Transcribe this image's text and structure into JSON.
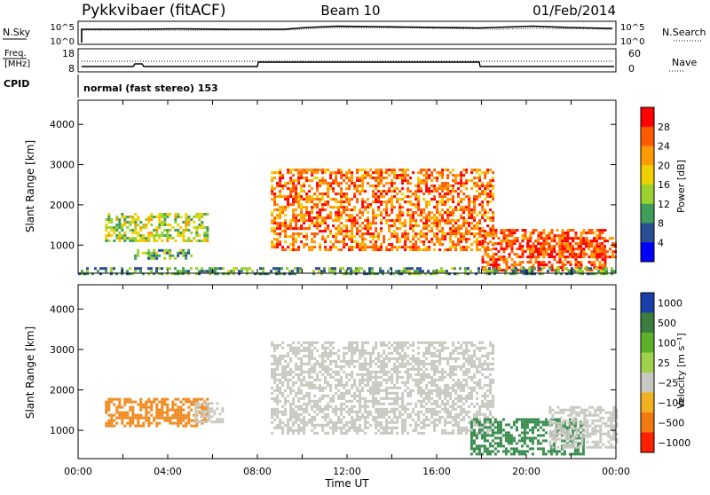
{
  "header": {
    "station": "Pykkvibaer (fitACF)",
    "beam": "Beam 10",
    "date": "01/Feb/2014"
  },
  "aux_panels": {
    "nsky_label": "N.Sky",
    "nsearch_label": "N.Search",
    "nsky_ticks": [
      "10^5",
      "10^0"
    ],
    "nsearch_ticks": [
      "10^5",
      "10^0"
    ],
    "freq_label_line1": "Freq.",
    "freq_label_line2": "[MHz]",
    "freq_ticks": [
      "18",
      "8"
    ],
    "nave_label": "Nave",
    "nave_ticks": [
      "60",
      "0"
    ],
    "cpid_label": "CPID",
    "cpid_text": "normal (fast stereo) 153"
  },
  "colors": {
    "frame": "#000000",
    "grid_bg": "#ffffff"
  },
  "chart_data": [
    {
      "type": "heatmap",
      "name": "power",
      "ylabel": "Slant Range [km]",
      "yticks": [
        1000,
        2000,
        3000,
        4000
      ],
      "ylim": [
        300,
        4600
      ],
      "xlim": [
        0,
        24
      ],
      "colorbar_label": "Power [dB]",
      "colorbar_ticks": [
        "28",
        "24",
        "20",
        "16",
        "12",
        "8",
        "4"
      ],
      "colorbar_colors": [
        "#ff0000",
        "#ff5a00",
        "#ff9a00",
        "#f0d000",
        "#9ad12c",
        "#3f9e5a",
        "#2a4e96",
        "#0000ff"
      ],
      "regions": [
        {
          "t0": 1.2,
          "t1": 5.8,
          "r0": 1100,
          "r1": 1800,
          "level": 0.45
        },
        {
          "t0": 2.5,
          "t1": 5.0,
          "r0": 700,
          "r1": 900,
          "level": 0.35
        },
        {
          "t0": 8.6,
          "t1": 18.5,
          "r0": 900,
          "r1": 2900,
          "level": 0.8
        },
        {
          "t0": 18.0,
          "t1": 23.5,
          "r0": 400,
          "r1": 1400,
          "level": 0.85
        },
        {
          "t0": 20.0,
          "t1": 24.0,
          "r0": 700,
          "r1": 1200,
          "level": 0.9
        },
        {
          "t0": 0.0,
          "t1": 24.0,
          "r0": 300,
          "r1": 450,
          "level": 0.3
        }
      ]
    },
    {
      "type": "heatmap",
      "name": "velocity",
      "ylabel": "Slant Range [km]",
      "xlabel": "Time UT",
      "yticks": [
        1000,
        2000,
        3000,
        4000
      ],
      "ylim": [
        300,
        4600
      ],
      "xlim": [
        0,
        24
      ],
      "xtick_labels": [
        "00:00",
        "04:00",
        "08:00",
        "12:00",
        "16:00",
        "20:00",
        "00:00"
      ],
      "colorbar_label": "Velocity [m s⁻¹]",
      "colorbar_ticks": [
        "1000",
        "500",
        "100",
        "25",
        "−25",
        "−100",
        "−500",
        "−1000"
      ],
      "colorbar_colors": [
        "#1a3fa8",
        "#3a7d3e",
        "#5db02a",
        "#9fd24a",
        "#c8c8c0",
        "#f0b020",
        "#f07a10",
        "#ff2000"
      ],
      "regions": [
        {
          "t0": 1.2,
          "t1": 5.8,
          "r0": 1100,
          "r1": 1800,
          "color": "#f08a20"
        },
        {
          "t0": 5.2,
          "t1": 6.4,
          "r0": 1200,
          "r1": 1700,
          "color": "#c8c8c0"
        },
        {
          "t0": 8.6,
          "t1": 18.5,
          "r0": 900,
          "r1": 3200,
          "color": "#c8c8c0"
        },
        {
          "t0": 17.5,
          "t1": 22.5,
          "r0": 400,
          "r1": 1300,
          "color": "#3a8d4e"
        },
        {
          "t0": 21.0,
          "t1": 24.0,
          "r0": 600,
          "r1": 1600,
          "color": "#c8c8c0"
        }
      ]
    }
  ]
}
